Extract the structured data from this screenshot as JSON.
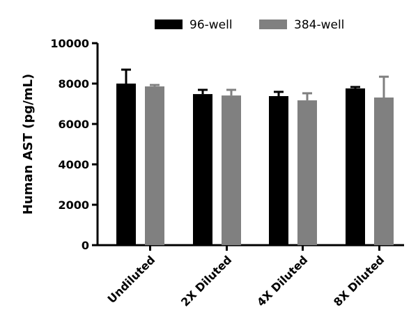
{
  "chart_data": {
    "type": "bar",
    "title": "",
    "xlabel": "",
    "ylabel": "Human AST (pg/mL)",
    "ylim": [
      0,
      10000
    ],
    "yticks": [
      "0",
      "2000",
      "4000",
      "6000",
      "8000",
      "10000"
    ],
    "grid": false,
    "legend_position": "top",
    "categories": [
      "Undiluted",
      "2X Diluted",
      "4X Diluted",
      "8X Diluted"
    ],
    "series": [
      {
        "name": "96-well",
        "color": "#000000",
        "values": [
          8000,
          7480,
          7380,
          7760
        ],
        "error_upper": [
          8690,
          7690,
          7590,
          7830
        ]
      },
      {
        "name": "384-well",
        "color": "#808080",
        "values": [
          7860,
          7410,
          7170,
          7310
        ],
        "error_upper": [
          7930,
          7690,
          7520,
          8340
        ]
      }
    ]
  }
}
